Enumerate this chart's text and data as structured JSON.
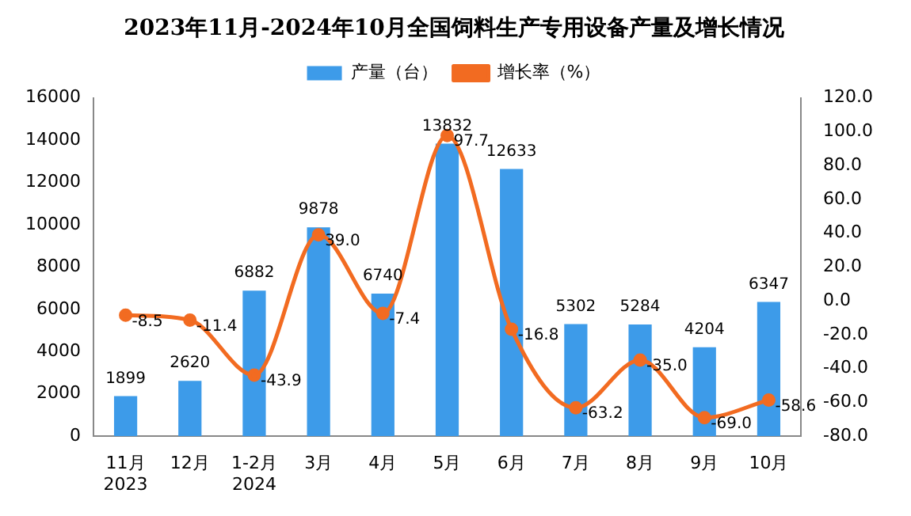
{
  "chart_data": {
    "type": "bar",
    "title": "2023年11月-2024年10月全国饲料生产专用设备产量及增长情况",
    "categories": [
      "11月\n2023",
      "12月",
      "1-2月\n2024",
      "3月",
      "4月",
      "5月",
      "6月",
      "7月",
      "8月",
      "9月",
      "10月"
    ],
    "series": [
      {
        "name": "产量（台）",
        "color": "#3d9be9",
        "values": [
          1899,
          2620,
          6882,
          9878,
          6740,
          13832,
          12633,
          5302,
          5284,
          4204,
          6347
        ],
        "value_labels": [
          "1899",
          "2620",
          "6882",
          "9878",
          "6740",
          "13832",
          "12633",
          "5302",
          "5284",
          "4204",
          "6347"
        ]
      },
      {
        "name": "增长率（%）",
        "type": "line",
        "axis": "y2",
        "color": "#f26b21",
        "values": [
          -8.5,
          -11.4,
          -43.9,
          39.0,
          -7.4,
          97.7,
          -16.8,
          -63.2,
          -35.0,
          -69.0,
          -58.6
        ],
        "value_labels": [
          "-8.5",
          "-11.4",
          "-43.9",
          "39.0",
          "-7.4",
          "97.7",
          "-16.8",
          "-63.2",
          "-35.0",
          "-69.0",
          "-58.6"
        ]
      }
    ],
    "ylim": [
      0,
      16000
    ],
    "yticks": [
      0,
      2000,
      4000,
      6000,
      8000,
      10000,
      12000,
      14000,
      16000
    ],
    "y2lim": [
      -80,
      120
    ],
    "y2ticks": [
      {
        "value": -80,
        "label": "-80.0"
      },
      {
        "value": -60,
        "label": "-60.0"
      },
      {
        "value": -40,
        "label": "-40.0"
      },
      {
        "value": -20,
        "label": "-20.0"
      },
      {
        "value": 0,
        "label": "0.0"
      },
      {
        "value": 20,
        "label": "20.0"
      },
      {
        "value": 40,
        "label": "40.0"
      },
      {
        "value": 60,
        "label": "60.0"
      },
      {
        "value": 80,
        "label": "80.0"
      },
      {
        "value": 100,
        "label": "100.0"
      },
      {
        "value": 120,
        "label": "120.0"
      }
    ],
    "grid": false,
    "legend": "top",
    "marker": "circle",
    "line_style": "solid"
  }
}
